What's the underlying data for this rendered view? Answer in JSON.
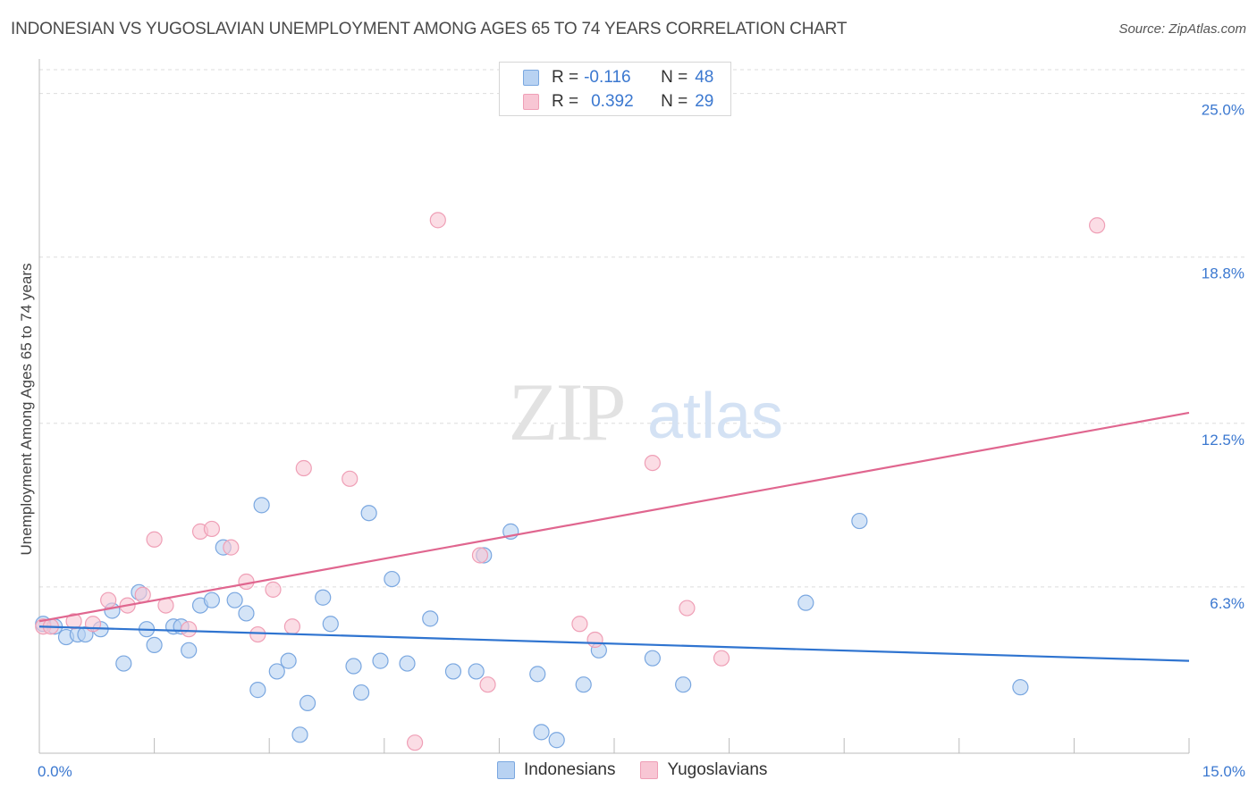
{
  "title": "INDONESIAN VS YUGOSLAVIAN UNEMPLOYMENT AMONG AGES 65 TO 74 YEARS CORRELATION CHART",
  "source": "Source: ZipAtlas.com",
  "watermark": {
    "zip": "ZIP",
    "atlas": "atlas"
  },
  "legend": {
    "rows": [
      {
        "r_label": "R =",
        "r_value": "-0.116",
        "n_label": "N =",
        "n_value": "48"
      },
      {
        "r_label": "R =",
        "r_value": "0.392",
        "n_label": "N =",
        "n_value": "29"
      }
    ]
  },
  "bottom_legend": [
    "Indonesians",
    "Yugoslavians"
  ],
  "colors": {
    "blue_fill": "#b8d2f2",
    "blue_stroke": "#7aa7e0",
    "blue_line": "#2f74d0",
    "pink_fill": "#f8c6d4",
    "pink_stroke": "#ef9fb6",
    "pink_line": "#e0668f",
    "tick_text": "#3b78d0",
    "grid": "#dddddd"
  },
  "chart_data": {
    "type": "scatter",
    "title": "INDONESIAN VS YUGOSLAVIAN UNEMPLOYMENT AMONG AGES 65 TO 74 YEARS CORRELATION CHART",
    "xlabel": "",
    "ylabel": "Unemployment Among Ages 65 to 74 years",
    "xlim": [
      0,
      15
    ],
    "ylim": [
      0,
      25.9
    ],
    "x_tick_labels": [
      "0.0%",
      "15.0%"
    ],
    "y_ticks": [
      6.3,
      12.5,
      18.8,
      25.0
    ],
    "y_tick_labels": [
      "6.3%",
      "12.5%",
      "18.8%",
      "25.0%"
    ],
    "series": [
      {
        "name": "Indonesians",
        "r": -0.116,
        "n": 48,
        "trend": {
          "x": [
            0,
            15
          ],
          "y": [
            4.8,
            3.5
          ]
        },
        "points": [
          [
            0.05,
            4.9
          ],
          [
            0.2,
            4.8
          ],
          [
            0.35,
            4.4
          ],
          [
            0.5,
            4.5
          ],
          [
            0.6,
            4.5
          ],
          [
            0.8,
            4.7
          ],
          [
            0.95,
            5.4
          ],
          [
            1.1,
            3.4
          ],
          [
            1.3,
            6.1
          ],
          [
            1.4,
            4.7
          ],
          [
            1.5,
            4.1
          ],
          [
            1.75,
            4.8
          ],
          [
            1.85,
            4.8
          ],
          [
            1.95,
            3.9
          ],
          [
            2.1,
            5.6
          ],
          [
            2.25,
            5.8
          ],
          [
            2.4,
            7.8
          ],
          [
            2.55,
            5.8
          ],
          [
            2.7,
            5.3
          ],
          [
            2.85,
            2.4
          ],
          [
            2.9,
            9.4
          ],
          [
            3.1,
            3.1
          ],
          [
            3.25,
            3.5
          ],
          [
            3.4,
            0.7
          ],
          [
            3.5,
            1.9
          ],
          [
            3.7,
            5.9
          ],
          [
            3.8,
            4.9
          ],
          [
            4.1,
            3.3
          ],
          [
            4.2,
            2.3
          ],
          [
            4.3,
            9.1
          ],
          [
            4.45,
            3.5
          ],
          [
            4.6,
            6.6
          ],
          [
            4.8,
            3.4
          ],
          [
            5.1,
            5.1
          ],
          [
            5.4,
            3.1
          ],
          [
            5.7,
            3.1
          ],
          [
            5.8,
            7.5
          ],
          [
            6.15,
            8.4
          ],
          [
            6.5,
            3.0
          ],
          [
            6.55,
            0.8
          ],
          [
            6.75,
            0.5
          ],
          [
            7.1,
            2.6
          ],
          [
            7.3,
            3.9
          ],
          [
            8.0,
            3.6
          ],
          [
            8.4,
            2.6
          ],
          [
            10.0,
            5.7
          ],
          [
            10.7,
            8.8
          ],
          [
            12.8,
            2.5
          ]
        ]
      },
      {
        "name": "Yugoslavians",
        "r": 0.392,
        "n": 29,
        "trend": {
          "x": [
            0,
            15
          ],
          "y": [
            5.0,
            12.9
          ]
        },
        "points": [
          [
            0.05,
            4.8
          ],
          [
            0.15,
            4.8
          ],
          [
            0.45,
            5.0
          ],
          [
            0.7,
            4.9
          ],
          [
            0.9,
            5.8
          ],
          [
            1.15,
            5.6
          ],
          [
            1.35,
            6.0
          ],
          [
            1.5,
            8.1
          ],
          [
            1.65,
            5.6
          ],
          [
            1.95,
            4.7
          ],
          [
            2.1,
            8.4
          ],
          [
            2.25,
            8.5
          ],
          [
            2.5,
            7.8
          ],
          [
            2.7,
            6.5
          ],
          [
            2.85,
            4.5
          ],
          [
            3.05,
            6.2
          ],
          [
            3.3,
            4.8
          ],
          [
            3.45,
            10.8
          ],
          [
            4.05,
            10.4
          ],
          [
            4.9,
            0.4
          ],
          [
            5.2,
            20.2
          ],
          [
            5.75,
            7.5
          ],
          [
            5.85,
            2.6
          ],
          [
            7.05,
            4.9
          ],
          [
            7.25,
            4.3
          ],
          [
            8.0,
            11.0
          ],
          [
            8.45,
            5.5
          ],
          [
            8.9,
            3.6
          ],
          [
            13.8,
            20.0
          ]
        ]
      }
    ]
  }
}
